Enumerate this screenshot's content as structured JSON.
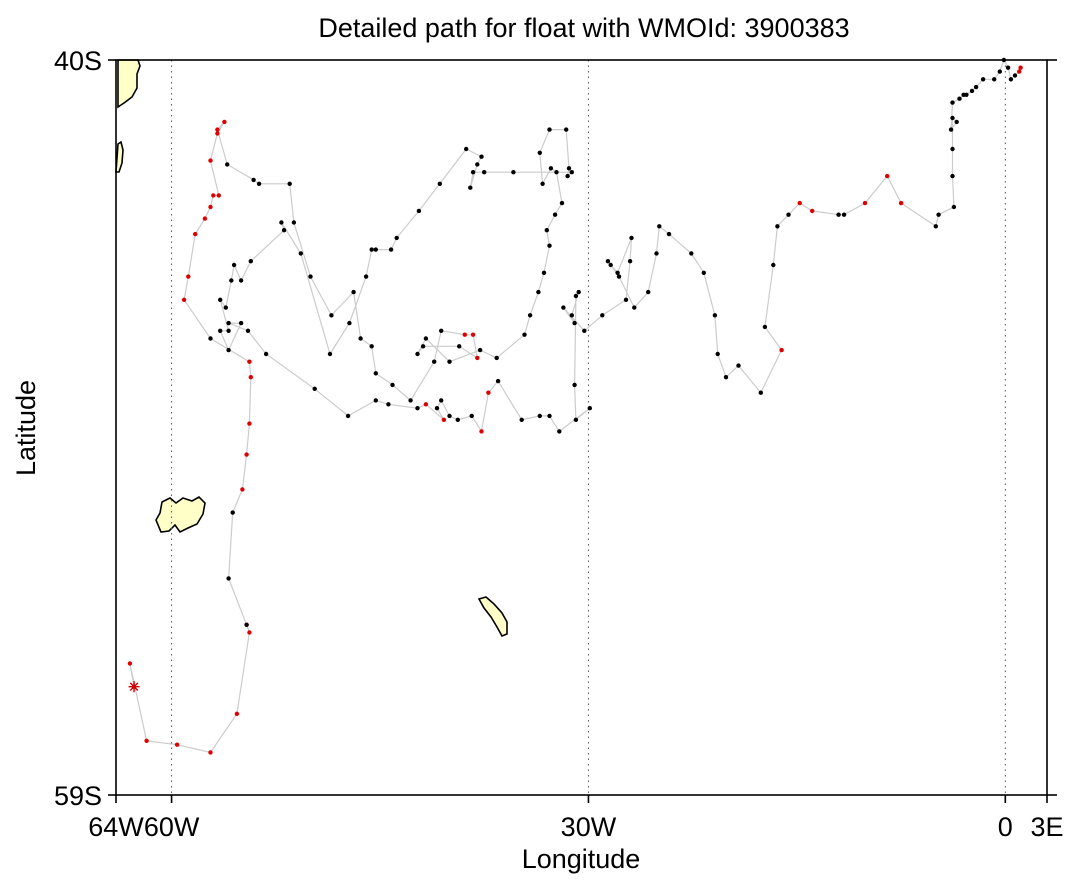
{
  "chart_data": {
    "type": "scatter",
    "title": "Detailed path for float with WMOId: 3900383",
    "xlabel": "Longitude",
    "ylabel": "Latitude",
    "xlim": [
      -64,
      3
    ],
    "ylim": [
      -59,
      -40
    ],
    "grid": "dotted meridians at 60W, 30W, 0",
    "x_ticks": [
      {
        "value": -64,
        "label": "64W"
      },
      {
        "value": -60,
        "label": "60W"
      },
      {
        "value": -30,
        "label": "30W"
      },
      {
        "value": 0,
        "label": "0"
      },
      {
        "value": 3,
        "label": "3E"
      }
    ],
    "y_ticks": [
      {
        "value": -40,
        "label": "40S"
      },
      {
        "value": -59,
        "label": "59S"
      }
    ],
    "gridlines_x": [
      -60,
      -30,
      0
    ],
    "colors": {
      "path_line": "#cccccc",
      "point_normal": "#000000",
      "point_flagged": "#e00000",
      "start_marker": "#cc0000",
      "land_fill": "#ffffc8",
      "land_outline": "#000000"
    },
    "start_marker": {
      "x": -62.7,
      "y": -56.2
    },
    "series": [
      {
        "points": [
          [
            -62.7,
            -56.2,
            1
          ],
          [
            -63.0,
            -55.6,
            1
          ],
          [
            -61.8,
            -57.6,
            1
          ],
          [
            -59.6,
            -57.7,
            1
          ],
          [
            -57.2,
            -57.9,
            1
          ],
          [
            -55.3,
            -56.9,
            1
          ],
          [
            -54.4,
            -54.8,
            1
          ],
          [
            -54.6,
            -54.6,
            1
          ],
          [
            -54.6,
            -54.6,
            0
          ],
          [
            -55.9,
            -53.4,
            0
          ],
          [
            -55.6,
            -51.7,
            0
          ],
          [
            -54.9,
            -51.1,
            1
          ],
          [
            -54.6,
            -50.2,
            1
          ],
          [
            -54.4,
            -49.4,
            1
          ],
          [
            -54.3,
            -48.2,
            1
          ],
          [
            -54.4,
            -47.8,
            1
          ],
          [
            -57.2,
            -47.2,
            0
          ],
          [
            -59.1,
            -46.2,
            1
          ],
          [
            -58.8,
            -45.6,
            1
          ],
          [
            -58.3,
            -44.5,
            1
          ],
          [
            -57.6,
            -44.1,
            1
          ],
          [
            -57.2,
            -43.8,
            1
          ],
          [
            -57.0,
            -43.5,
            1
          ],
          [
            -56.6,
            -43.5,
            1
          ],
          [
            -57.2,
            -42.6,
            1
          ],
          [
            -56.7,
            -41.9,
            1
          ],
          [
            -56.2,
            -41.6,
            1
          ],
          [
            -56.7,
            -41.8,
            1
          ],
          [
            -56.0,
            -42.7,
            0
          ],
          [
            -54.1,
            -43.1,
            0
          ],
          [
            -53.7,
            -43.2,
            0
          ],
          [
            -51.5,
            -43.2,
            0
          ],
          [
            -51.2,
            -44.2,
            0
          ],
          [
            -50.0,
            -45.6,
            0
          ],
          [
            -48.5,
            -46.6,
            0
          ],
          [
            -46.9,
            -46.0,
            0
          ],
          [
            -46.4,
            -47.2,
            0
          ],
          [
            -45.6,
            -47.4,
            0
          ],
          [
            -45.3,
            -48.1,
            0
          ],
          [
            -44.1,
            -48.4,
            0
          ],
          [
            -42.8,
            -48.8,
            0
          ],
          [
            -41.1,
            -47.8,
            0
          ],
          [
            -40.6,
            -47.0,
            0
          ],
          [
            -38.9,
            -47.1,
            1
          ],
          [
            -38.3,
            -47.1,
            1
          ],
          [
            -38.0,
            -47.7,
            1
          ],
          [
            -39.3,
            -47.4,
            0
          ],
          [
            -41.9,
            -47.4,
            0
          ],
          [
            -42.3,
            -47.6,
            0
          ],
          [
            -41.7,
            -47.2,
            0
          ],
          [
            -40.0,
            -47.8,
            0
          ],
          [
            -37.8,
            -47.5,
            0
          ],
          [
            -36.6,
            -47.7,
            0
          ],
          [
            -34.6,
            -47.1,
            0
          ],
          [
            -34.2,
            -46.6,
            0
          ],
          [
            -33.6,
            -46.0,
            0
          ],
          [
            -33.2,
            -45.5,
            0
          ],
          [
            -32.8,
            -44.8,
            0
          ],
          [
            -33.0,
            -44.4,
            0
          ],
          [
            -32.4,
            -44.0,
            0
          ],
          [
            -31.9,
            -43.7,
            0
          ],
          [
            -32.3,
            -42.9,
            0
          ],
          [
            -32.7,
            -42.8,
            0
          ],
          [
            -33.3,
            -43.2,
            0
          ],
          [
            -33.5,
            -42.4,
            0
          ],
          [
            -32.8,
            -41.8,
            0
          ],
          [
            -31.6,
            -41.8,
            0
          ],
          [
            -31.4,
            -42.8,
            0
          ],
          [
            -31.5,
            -43.0,
            0
          ],
          [
            -31.2,
            -42.9,
            0
          ],
          [
            -35.4,
            -42.9,
            0
          ],
          [
            -37.5,
            -42.9,
            0
          ],
          [
            -38.3,
            -42.9,
            0
          ],
          [
            -38.5,
            -43.3,
            0
          ],
          [
            -38.0,
            -42.7,
            0
          ],
          [
            -37.7,
            -42.5,
            0
          ],
          [
            -38.8,
            -42.3,
            0
          ],
          [
            -40.7,
            -43.2,
            0
          ],
          [
            -42.2,
            -43.9,
            0
          ],
          [
            -43.8,
            -44.6,
            0
          ],
          [
            -44.2,
            -44.9,
            0
          ],
          [
            -45.3,
            -44.9,
            0
          ],
          [
            -45.6,
            -44.9,
            0
          ],
          [
            -46.0,
            -45.6,
            0
          ],
          [
            -47.2,
            -46.8,
            0
          ],
          [
            -48.6,
            -47.6,
            0
          ],
          [
            -50.7,
            -45.0,
            0
          ],
          [
            -52.1,
            -44.2,
            0
          ],
          [
            -51.9,
            -44.4,
            0
          ],
          [
            -54.3,
            -45.2,
            0
          ],
          [
            -55.0,
            -45.7,
            0
          ],
          [
            -55.5,
            -45.3,
            0
          ],
          [
            -55.7,
            -45.7,
            0
          ],
          [
            -56.1,
            -46.4,
            0
          ],
          [
            -56.5,
            -46.2,
            0
          ],
          [
            -55.9,
            -47.0,
            0
          ],
          [
            -56.5,
            -47.0,
            0
          ],
          [
            -55.9,
            -47.5,
            0
          ],
          [
            -55.0,
            -46.8,
            0
          ],
          [
            -55.9,
            -46.8,
            0
          ],
          [
            -54.5,
            -47.0,
            0
          ],
          [
            -53.2,
            -47.6,
            0
          ],
          [
            -49.7,
            -48.5,
            0
          ],
          [
            -47.3,
            -49.2,
            0
          ],
          [
            -45.3,
            -48.8,
            0
          ],
          [
            -44.4,
            -48.9,
            0
          ],
          [
            -42.3,
            -49.0,
            0
          ],
          [
            -41.7,
            -48.9,
            1
          ],
          [
            -40.4,
            -49.3,
            1
          ],
          [
            -40.9,
            -49.0,
            0
          ],
          [
            -40.6,
            -48.8,
            0
          ],
          [
            -40.0,
            -49.2,
            0
          ],
          [
            -39.4,
            -49.3,
            0
          ],
          [
            -38.4,
            -49.2,
            0
          ],
          [
            -37.7,
            -49.6,
            1
          ],
          [
            -37.2,
            -48.6,
            1
          ],
          [
            -36.5,
            -48.3,
            0
          ],
          [
            -34.8,
            -49.3,
            0
          ],
          [
            -33.5,
            -49.2,
            0
          ],
          [
            -32.8,
            -49.2,
            0
          ],
          [
            -32.1,
            -49.6,
            0
          ],
          [
            -29.9,
            -49.0,
            0
          ],
          [
            -30.9,
            -49.3,
            0
          ],
          [
            -31.0,
            -48.4,
            0
          ],
          [
            -30.9,
            -46.1,
            0
          ],
          [
            -30.7,
            -46.0,
            0
          ],
          [
            -31.2,
            -46.6,
            0
          ],
          [
            -31.0,
            -46.8,
            0
          ],
          [
            -31.8,
            -46.4,
            0
          ],
          [
            -30.3,
            -47.0,
            0
          ],
          [
            -29.0,
            -46.6,
            0
          ],
          [
            -27.3,
            -46.2,
            0
          ],
          [
            -27.0,
            -45.2,
            0
          ],
          [
            -26.9,
            -44.6,
            0
          ],
          [
            -27.9,
            -45.5,
            0
          ],
          [
            -28.4,
            -45.3,
            0
          ],
          [
            -28.6,
            -45.2,
            0
          ],
          [
            -27.8,
            -45.6,
            0
          ],
          [
            -26.7,
            -46.4,
            0
          ],
          [
            -25.7,
            -46.0,
            0
          ],
          [
            -25.1,
            -45.0,
            0
          ],
          [
            -24.9,
            -44.3,
            0
          ],
          [
            -24.2,
            -44.5,
            0
          ],
          [
            -22.6,
            -45.0,
            0
          ],
          [
            -21.7,
            -45.5,
            0
          ],
          [
            -20.9,
            -46.6,
            0
          ],
          [
            -20.7,
            -47.6,
            0
          ],
          [
            -20.1,
            -48.2,
            0
          ],
          [
            -19.2,
            -47.9,
            0
          ],
          [
            -17.6,
            -48.6,
            0
          ],
          [
            -16.1,
            -47.5,
            1
          ],
          [
            -17.3,
            -46.9,
            0
          ],
          [
            -16.7,
            -45.3,
            0
          ],
          [
            -16.4,
            -44.3,
            0
          ],
          [
            -15.6,
            -44.0,
            0
          ],
          [
            -14.8,
            -43.7,
            1
          ],
          [
            -13.9,
            -43.9,
            1
          ],
          [
            -12.0,
            -44.0,
            0
          ],
          [
            -11.6,
            -44.0,
            0
          ],
          [
            -10.1,
            -43.7,
            1
          ],
          [
            -8.5,
            -43.0,
            1
          ],
          [
            -7.5,
            -43.7,
            1
          ],
          [
            -5.0,
            -44.3,
            0
          ],
          [
            -4.8,
            -44.0,
            0
          ],
          [
            -3.7,
            -43.8,
            0
          ],
          [
            -3.8,
            -43.0,
            0
          ],
          [
            -3.8,
            -42.3,
            0
          ],
          [
            -3.8,
            -41.5,
            0
          ],
          [
            -3.5,
            -41.6,
            0
          ],
          [
            -3.9,
            -41.8,
            0
          ],
          [
            -3.8,
            -41.1,
            0
          ],
          [
            -3.3,
            -41.0,
            0
          ],
          [
            -3.0,
            -40.9,
            0
          ],
          [
            -2.8,
            -40.9,
            0
          ],
          [
            -2.4,
            -40.8,
            0
          ],
          [
            -2.1,
            -40.7,
            0
          ],
          [
            -1.6,
            -40.5,
            0
          ],
          [
            -0.8,
            -40.5,
            0
          ],
          [
            -0.4,
            -40.3,
            0
          ],
          [
            -0.1,
            -40.0,
            0
          ],
          [
            0.2,
            -40.2,
            0
          ],
          [
            0.4,
            -40.5,
            0
          ],
          [
            0.7,
            -40.4,
            0
          ],
          [
            1.0,
            -40.3,
            1
          ],
          [
            1.1,
            -40.2,
            1
          ]
        ]
      }
    ]
  }
}
